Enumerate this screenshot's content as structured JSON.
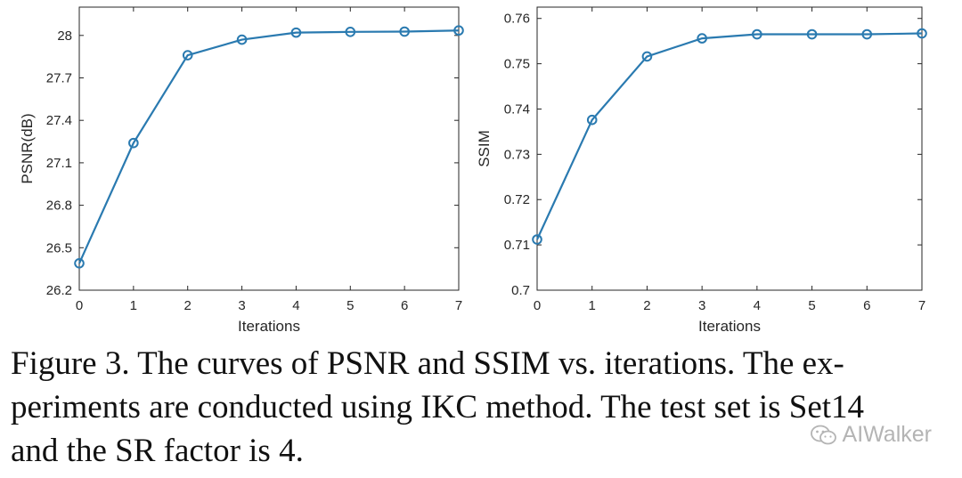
{
  "chart_data": [
    {
      "type": "line",
      "title": "",
      "xlabel": "Iterations",
      "ylabel": "PSNR(dB)",
      "xlim": [
        0,
        7
      ],
      "ylim": [
        26.2,
        28.2
      ],
      "xticks": [
        "0",
        "1",
        "2",
        "3",
        "4",
        "5",
        "6",
        "7"
      ],
      "yticks": [
        "26.2",
        "26.5",
        "26.8",
        "27.1",
        "27.4",
        "27.7",
        "28"
      ],
      "grid": false,
      "x": [
        0,
        1,
        2,
        3,
        4,
        5,
        6,
        7
      ],
      "series": [
        {
          "values": [
            26.39,
            27.24,
            27.86,
            27.97,
            28.02,
            28.025,
            28.027,
            28.035
          ],
          "color": "#2a7ab0"
        }
      ]
    },
    {
      "type": "line",
      "title": "",
      "xlabel": "Iterations",
      "ylabel": "SSIM",
      "xlim": [
        0,
        7
      ],
      "ylim": [
        0.7,
        0.7625
      ],
      "xticks": [
        "0",
        "1",
        "2",
        "3",
        "4",
        "5",
        "6",
        "7"
      ],
      "yticks": [
        "0.7",
        "0.71",
        "0.72",
        "0.73",
        "0.74",
        "0.75",
        "0.76"
      ],
      "grid": false,
      "x": [
        0,
        1,
        2,
        3,
        4,
        5,
        6,
        7
      ],
      "series": [
        {
          "values": [
            0.7112,
            0.7376,
            0.7516,
            0.7556,
            0.7565,
            0.7565,
            0.7565,
            0.7567
          ],
          "color": "#2a7ab0"
        }
      ]
    }
  ],
  "caption": {
    "line1": "Figure 3. The curves of PSNR and SSIM vs. iterations. The ex-",
    "line2": "periments are conducted using IKC method. The test set is Set14",
    "line3": "and the SR factor is 4."
  },
  "watermark": {
    "text": "AIWalker",
    "icon": "wechat-icon",
    "color": "#b4b4b4"
  }
}
